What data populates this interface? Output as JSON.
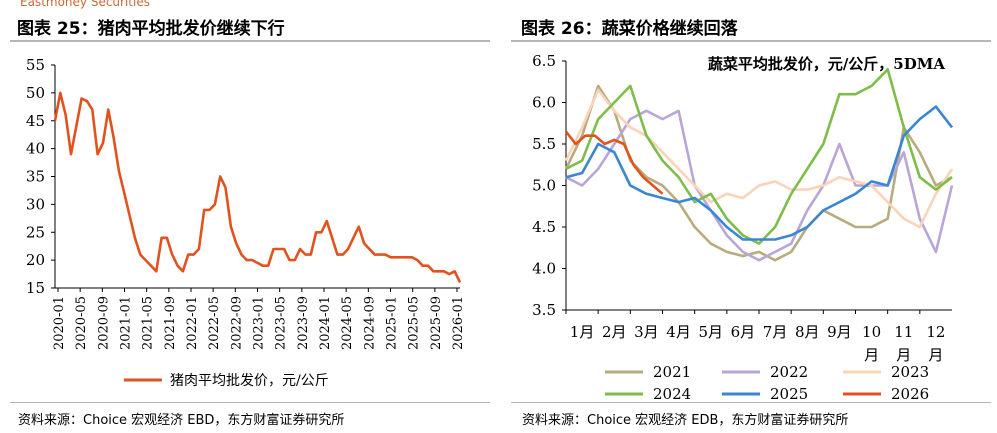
{
  "watermark": "Eastmoney Securities",
  "left": {
    "title": "图表 25：猪肉平均批发价继续下行",
    "source": "资料来源：Choice 宏观经济 EBD，东方财富证券研究所"
  },
  "right": {
    "title": "图表 26：蔬菜价格继续回落",
    "source": "资料来源：Choice 宏观经济 EDB，东方财富证券研究所"
  },
  "chart_data": [
    {
      "type": "line",
      "title": "",
      "legend": "bottom",
      "ylim": [
        15,
        55
      ],
      "yticks": [
        15,
        20,
        25,
        30,
        35,
        40,
        45,
        50,
        55
      ],
      "xlabels": [
        "2020-01",
        "2020-05",
        "2020-09",
        "2021-01",
        "2021-05",
        "2021-09",
        "2022-01",
        "2022-05",
        "2022-09",
        "2023-01",
        "2023-05",
        "2023-09",
        "2024-01",
        "2024-05",
        "2024-09",
        "2025-01",
        "2025-05",
        "2025-09",
        "2026-01"
      ],
      "series": [
        {
          "name": "猪肉平均批发价，元/公斤",
          "color": "#e0531f",
          "x": [
            0,
            1,
            2,
            3,
            4,
            5,
            6,
            7,
            8,
            9,
            10,
            11,
            12,
            13,
            14,
            15,
            16,
            17,
            18,
            19,
            20,
            21,
            22,
            23,
            24,
            25,
            26,
            27,
            28,
            29,
            30,
            31,
            32,
            33,
            34,
            35,
            36,
            37,
            38,
            39,
            40,
            41,
            42,
            43,
            44,
            45,
            46,
            47,
            48,
            49,
            50,
            51,
            52,
            53,
            54,
            55,
            56,
            57,
            58,
            59,
            60,
            61,
            62,
            63,
            64,
            65,
            66,
            67,
            68,
            69,
            70,
            71,
            72,
            73,
            74,
            75,
            76
          ],
          "values": [
            45,
            50,
            46,
            39,
            44,
            49,
            48.5,
            47,
            39,
            41,
            47,
            42,
            36,
            32,
            28,
            24,
            21,
            20,
            19,
            18,
            24,
            24,
            21,
            19,
            18,
            21,
            21,
            22,
            29,
            29,
            30,
            35,
            33,
            26,
            23,
            21,
            20,
            20,
            19.5,
            19,
            19,
            22,
            22,
            22,
            20,
            20,
            22,
            21,
            21,
            25,
            25,
            27,
            24,
            21,
            21,
            22,
            24,
            26,
            23,
            22,
            21,
            21,
            21,
            20.5,
            20.5,
            20.5,
            20.5,
            20.5,
            20,
            19,
            19,
            18,
            18,
            18,
            17.5,
            18,
            16
          ]
        }
      ]
    },
    {
      "type": "line",
      "title": "蔬菜平均批发价，元/公斤，5DMA",
      "legend": "bottom",
      "ylim": [
        3.5,
        6.5
      ],
      "yticks": [
        3.5,
        4.0,
        4.5,
        5.0,
        5.5,
        6.0,
        6.5
      ],
      "categories": [
        "1月",
        "2月",
        "3月",
        "4月",
        "5月",
        "6月",
        "7月",
        "8月",
        "9月",
        "10月",
        "11月",
        "12月"
      ],
      "series": [
        {
          "name": "2021",
          "color": "#b8ab7c",
          "x": [
            0,
            0.5,
            1,
            1.5,
            2,
            2.5,
            3,
            3.5,
            4,
            4.5,
            5,
            5.5,
            6,
            6.5,
            7,
            7.5,
            8,
            8.5,
            9,
            9.5,
            10,
            10.5,
            11,
            11.5,
            12
          ],
          "values": [
            5.2,
            5.6,
            6.2,
            5.9,
            5.3,
            5.1,
            5.0,
            4.8,
            4.5,
            4.3,
            4.2,
            4.15,
            4.2,
            4.1,
            4.2,
            4.5,
            4.7,
            4.6,
            4.5,
            4.5,
            4.6,
            5.7,
            5.4,
            5.0,
            5.1
          ]
        },
        {
          "name": "2022",
          "color": "#b9a6d8",
          "x": [
            0,
            0.5,
            1,
            1.5,
            2,
            2.5,
            3,
            3.5,
            4,
            4.5,
            5,
            5.5,
            6,
            6.5,
            7,
            7.5,
            8,
            8.5,
            9,
            9.5,
            10,
            10.5,
            11,
            11.5,
            12
          ],
          "values": [
            5.1,
            5.0,
            5.2,
            5.5,
            5.8,
            5.9,
            5.8,
            5.9,
            5.0,
            4.7,
            4.4,
            4.2,
            4.1,
            4.2,
            4.3,
            4.7,
            5.0,
            5.5,
            5.0,
            5.0,
            5.0,
            5.4,
            4.6,
            4.2,
            5.0
          ]
        },
        {
          "name": "2023",
          "color": "#fbd3b9",
          "x": [
            0,
            0.5,
            1,
            1.5,
            2,
            2.5,
            3,
            3.5,
            4,
            4.5,
            5,
            5.5,
            6,
            6.5,
            7,
            7.5,
            8,
            8.5,
            9,
            9.5,
            10,
            10.5,
            11,
            11.5,
            12
          ],
          "values": [
            5.3,
            5.7,
            6.15,
            5.9,
            5.7,
            5.6,
            5.4,
            5.2,
            5.0,
            4.8,
            4.9,
            4.85,
            5.0,
            5.05,
            4.95,
            4.95,
            5.0,
            5.1,
            5.05,
            5.0,
            4.8,
            4.6,
            4.5,
            4.9,
            5.2
          ]
        },
        {
          "name": "2024",
          "color": "#7fbd4a",
          "x": [
            0,
            0.5,
            1,
            1.5,
            2,
            2.5,
            3,
            3.5,
            4,
            4.5,
            5,
            5.5,
            6,
            6.5,
            7,
            7.5,
            8,
            8.5,
            9,
            9.5,
            10,
            10.5,
            11,
            11.5,
            12
          ],
          "values": [
            5.2,
            5.3,
            5.8,
            6.0,
            6.2,
            5.6,
            5.3,
            5.1,
            4.8,
            4.9,
            4.6,
            4.4,
            4.3,
            4.5,
            4.9,
            5.2,
            5.5,
            6.1,
            6.1,
            6.2,
            6.4,
            5.7,
            5.1,
            4.95,
            5.1
          ]
        },
        {
          "name": "2025",
          "color": "#3b86d2",
          "x": [
            0,
            0.5,
            1,
            1.5,
            2,
            2.5,
            3,
            3.5,
            4,
            4.5,
            5,
            5.5,
            6,
            6.5,
            7,
            7.5,
            8,
            8.5,
            9,
            9.5,
            10,
            10.5,
            11,
            11.5,
            12
          ],
          "values": [
            5.1,
            5.15,
            5.5,
            5.4,
            5.0,
            4.9,
            4.85,
            4.8,
            4.85,
            4.7,
            4.5,
            4.35,
            4.35,
            4.35,
            4.4,
            4.5,
            4.7,
            4.8,
            4.9,
            5.05,
            5.0,
            5.6,
            5.8,
            5.95,
            5.7
          ]
        },
        {
          "name": "2026",
          "color": "#e0531f",
          "x": [
            0,
            0.3,
            0.6,
            0.9,
            1.2,
            1.5,
            1.8,
            2.1,
            2.4,
            2.7,
            3.0
          ],
          "values": [
            5.65,
            5.5,
            5.6,
            5.6,
            5.5,
            5.55,
            5.5,
            5.25,
            5.1,
            5.0,
            4.9
          ]
        }
      ]
    }
  ]
}
